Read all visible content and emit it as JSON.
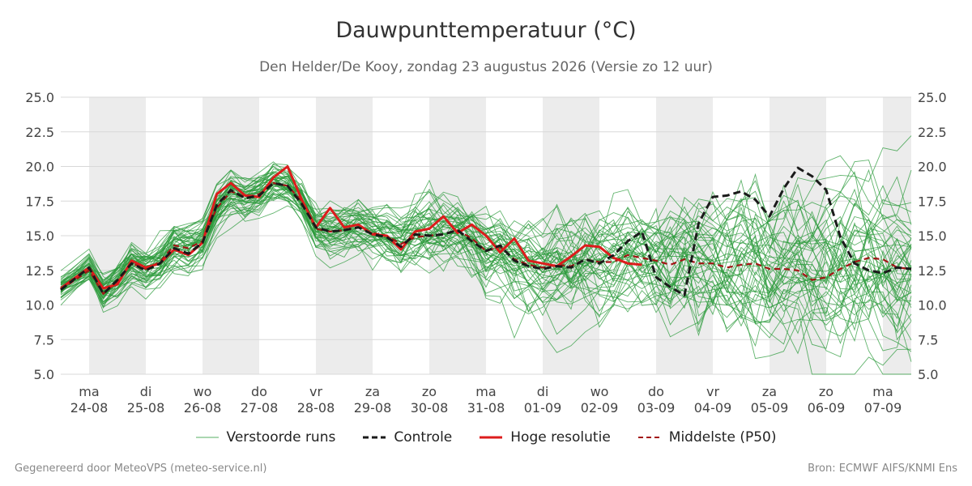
{
  "chart_data": {
    "type": "line",
    "title": "Dauwpunttemperatuur (°C)",
    "subtitle": "Den Helder/De Kooy, zondag 23 augustus 2026 (Versie zo 12 uur)",
    "ylim": [
      5.0,
      25.0
    ],
    "yticks": [
      "5.0",
      "7.5",
      "10.0",
      "12.5",
      "15.0",
      "17.5",
      "20.0",
      "22.5",
      "25.0"
    ],
    "x_range": [
      "2026-08-23T12:00",
      "2026-09-07T12:00"
    ],
    "grid": true,
    "legend_position": "bottom",
    "days": [
      {
        "day": "ma",
        "date": "24-08"
      },
      {
        "day": "di",
        "date": "25-08"
      },
      {
        "day": "wo",
        "date": "26-08"
      },
      {
        "day": "do",
        "date": "27-08"
      },
      {
        "day": "vr",
        "date": "28-08"
      },
      {
        "day": "za",
        "date": "29-08"
      },
      {
        "day": "zo",
        "date": "30-08"
      },
      {
        "day": "ma",
        "date": "31-08"
      },
      {
        "day": "di",
        "date": "01-09"
      },
      {
        "day": "wo",
        "date": "02-09"
      },
      {
        "day": "do",
        "date": "03-09"
      },
      {
        "day": "vr",
        "date": "04-09"
      },
      {
        "day": "za",
        "date": "05-09"
      },
      {
        "day": "zo",
        "date": "06-09"
      },
      {
        "day": "ma",
        "date": "07-09"
      }
    ],
    "series": [
      {
        "name": "Controle",
        "color": "#1a1a1a",
        "x": [
          "2026-08-23T12:00",
          "2026-08-24T00:00",
          "2026-08-24T06:00",
          "2026-08-24T12:00",
          "2026-08-24T18:00",
          "2026-08-25T00:00",
          "2026-08-25T06:00",
          "2026-08-25T12:00",
          "2026-08-25T18:00",
          "2026-08-26T00:00",
          "2026-08-26T06:00",
          "2026-08-26T12:00",
          "2026-08-26T18:00",
          "2026-08-27T00:00",
          "2026-08-27T06:00",
          "2026-08-27T12:00",
          "2026-08-27T18:00",
          "2026-08-28T00:00",
          "2026-08-28T06:00",
          "2026-08-28T12:00",
          "2026-08-28T18:00",
          "2026-08-29T00:00",
          "2026-08-29T06:00",
          "2026-08-29T12:00",
          "2026-08-29T18:00",
          "2026-08-30T00:00",
          "2026-08-30T06:00",
          "2026-08-30T12:00",
          "2026-08-30T18:00",
          "2026-08-31T00:00",
          "2026-08-31T06:00",
          "2026-08-31T12:00",
          "2026-08-31T18:00",
          "2026-09-01T00:00",
          "2026-09-01T06:00",
          "2026-09-01T12:00",
          "2026-09-01T18:00",
          "2026-09-02T00:00",
          "2026-09-02T06:00",
          "2026-09-02T12:00",
          "2026-09-02T18:00",
          "2026-09-03T00:00",
          "2026-09-03T06:00",
          "2026-09-03T12:00",
          "2026-09-03T18:00",
          "2026-09-04T00:00",
          "2026-09-04T06:00",
          "2026-09-04T12:00",
          "2026-09-04T18:00",
          "2026-09-05T00:00",
          "2026-09-05T06:00",
          "2026-09-05T12:00",
          "2026-09-05T18:00",
          "2026-09-06T00:00",
          "2026-09-06T06:00",
          "2026-09-06T12:00",
          "2026-09-06T18:00",
          "2026-09-07T00:00",
          "2026-09-07T06:00",
          "2026-09-07T12:00"
        ],
        "values": [
          11.1,
          12.7,
          10.8,
          11.8,
          13.0,
          12.5,
          13.0,
          14.1,
          13.7,
          14.5,
          17.2,
          18.3,
          17.7,
          17.9,
          18.8,
          18.6,
          17.3,
          15.6,
          15.3,
          15.4,
          15.6,
          15.1,
          14.9,
          14.2,
          15.1,
          15.0,
          15.1,
          15.4,
          14.6,
          13.9,
          14.3,
          13.2,
          12.8,
          12.6,
          12.8,
          12.7,
          13.3,
          13.0,
          13.6,
          14.6,
          15.3,
          12.0,
          11.3,
          10.7,
          15.9,
          17.8,
          17.9,
          18.2,
          17.6,
          16.4,
          18.4,
          19.9,
          19.3,
          18.3,
          14.9,
          13.0,
          12.5,
          12.3,
          12.7,
          12.6
        ]
      },
      {
        "name": "Hoge resolutie",
        "color": "#dd1c1c",
        "x": [
          "2026-08-23T12:00",
          "2026-08-24T00:00",
          "2026-08-24T06:00",
          "2026-08-24T12:00",
          "2026-08-24T18:00",
          "2026-08-25T00:00",
          "2026-08-25T06:00",
          "2026-08-25T12:00",
          "2026-08-25T18:00",
          "2026-08-26T00:00",
          "2026-08-26T06:00",
          "2026-08-26T12:00",
          "2026-08-26T18:00",
          "2026-08-27T00:00",
          "2026-08-27T06:00",
          "2026-08-27T12:00",
          "2026-08-27T18:00",
          "2026-08-28T00:00",
          "2026-08-28T06:00",
          "2026-08-28T12:00",
          "2026-08-28T18:00",
          "2026-08-29T00:00",
          "2026-08-29T06:00",
          "2026-08-29T12:00",
          "2026-08-29T18:00",
          "2026-08-30T00:00",
          "2026-08-30T06:00",
          "2026-08-30T12:00",
          "2026-08-30T18:00",
          "2026-08-31T00:00",
          "2026-08-31T06:00",
          "2026-08-31T12:00",
          "2026-08-31T18:00",
          "2026-09-01T00:00",
          "2026-09-01T06:00",
          "2026-09-01T12:00",
          "2026-09-01T18:00",
          "2026-09-02T00:00",
          "2026-09-02T06:00",
          "2026-09-02T12:00",
          "2026-09-02T18:00"
        ],
        "values": [
          11.2,
          12.7,
          11.2,
          11.5,
          13.2,
          12.7,
          13.0,
          14.0,
          13.6,
          14.5,
          18.0,
          18.8,
          17.9,
          17.8,
          19.2,
          20.0,
          17.6,
          15.6,
          17.0,
          15.6,
          15.8,
          15.1,
          15.0,
          14.0,
          15.3,
          15.5,
          16.4,
          15.2,
          15.8,
          15.0,
          13.8,
          14.8,
          13.2,
          13.0,
          12.8,
          13.5,
          14.3,
          14.2,
          13.4,
          13.0,
          12.9
        ]
      },
      {
        "name": "Middelste (P50)",
        "color": "#a31515",
        "x": [
          "2026-08-23T12:00",
          "2026-08-24T00:00",
          "2026-08-24T06:00",
          "2026-08-24T12:00",
          "2026-08-24T18:00",
          "2026-08-25T00:00",
          "2026-08-25T06:00",
          "2026-08-25T12:00",
          "2026-08-25T18:00",
          "2026-08-26T00:00",
          "2026-08-26T06:00",
          "2026-08-26T12:00",
          "2026-08-26T18:00",
          "2026-08-27T00:00",
          "2026-08-27T06:00",
          "2026-08-27T12:00",
          "2026-08-27T18:00",
          "2026-08-28T00:00",
          "2026-08-28T06:00",
          "2026-08-28T12:00",
          "2026-08-28T18:00",
          "2026-08-29T00:00",
          "2026-08-29T06:00",
          "2026-08-29T12:00",
          "2026-08-29T18:00",
          "2026-08-30T00:00",
          "2026-08-30T06:00",
          "2026-08-30T12:00",
          "2026-08-30T18:00",
          "2026-08-31T00:00",
          "2026-08-31T06:00",
          "2026-08-31T12:00",
          "2026-08-31T18:00",
          "2026-09-01T00:00",
          "2026-09-01T06:00",
          "2026-09-01T12:00",
          "2026-09-01T18:00",
          "2026-09-02T00:00",
          "2026-09-02T06:00",
          "2026-09-02T12:00",
          "2026-09-02T18:00",
          "2026-09-03T00:00",
          "2026-09-03T06:00",
          "2026-09-03T12:00",
          "2026-09-03T18:00",
          "2026-09-04T00:00",
          "2026-09-04T06:00",
          "2026-09-04T12:00",
          "2026-09-04T18:00",
          "2026-09-05T00:00",
          "2026-09-05T06:00",
          "2026-09-05T12:00",
          "2026-09-05T18:00",
          "2026-09-06T00:00",
          "2026-09-06T06:00",
          "2026-09-06T12:00",
          "2026-09-06T18:00",
          "2026-09-07T00:00",
          "2026-09-07T06:00",
          "2026-09-07T12:00"
        ],
        "values": [
          11.1,
          12.5,
          10.8,
          11.7,
          13.0,
          12.6,
          13.1,
          14.3,
          14.1,
          14.6,
          17.0,
          18.2,
          17.8,
          18.0,
          18.8,
          18.6,
          17.5,
          15.5,
          15.3,
          15.4,
          15.6,
          15.2,
          15.0,
          14.4,
          14.9,
          15.0,
          15.1,
          15.4,
          14.8,
          13.9,
          14.2,
          13.3,
          12.9,
          12.7,
          12.9,
          12.8,
          13.3,
          13.1,
          13.1,
          13.6,
          13.4,
          13.2,
          12.9,
          13.3,
          13.0,
          13.0,
          12.7,
          12.9,
          13.0,
          12.6,
          12.6,
          12.5,
          11.8,
          12.0,
          12.6,
          13.1,
          13.4,
          13.3,
          12.7,
          12.6
        ]
      }
    ],
    "ensemble": {
      "name": "Verstoorde runs",
      "color": "#2c9b3c",
      "members": 50,
      "step_hours": 6,
      "spread_by_day": [
        0.8,
        1.0,
        1.0,
        0.9,
        1.0,
        1.2,
        1.6,
        1.8,
        2.0,
        2.3,
        2.8,
        3.2,
        3.4,
        3.6,
        3.6,
        3.6
      ]
    }
  },
  "legend": {
    "ensemble_label": "Verstoorde runs",
    "control_label": "Controle",
    "hires_label": "Hoge resolutie",
    "median_label": "Middelste (P50)"
  },
  "footer": {
    "left": "Gegenereerd door MeteoVPS (meteo-service.nl)",
    "right": "Bron: ECMWF AIFS/KNMI Ens"
  }
}
